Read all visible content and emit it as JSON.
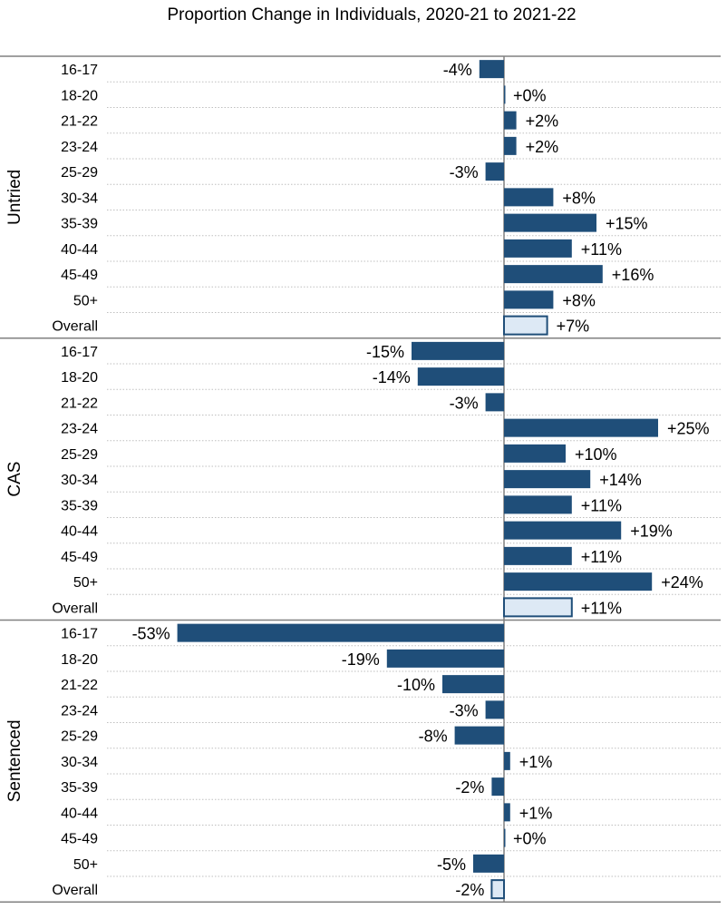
{
  "chart_data": {
    "type": "bar",
    "orientation": "horizontal",
    "title": "Proportion Change in Individuals, 2020-21 to 2021-22",
    "xlim": [
      -55,
      28
    ],
    "colors": {
      "bar": "#1f4e79",
      "overall_fill": "#dde9f5",
      "overall_stroke": "#1f4e79",
      "axis": "#808080",
      "gridline": "#bfbfbf"
    },
    "groups": [
      {
        "name": "Untried",
        "categories": [
          "16-17",
          "18-20",
          "21-22",
          "23-24",
          "25-29",
          "30-34",
          "35-39",
          "40-44",
          "45-49",
          "50+",
          "Overall"
        ],
        "values": [
          -4,
          0,
          2,
          2,
          -3,
          8,
          15,
          11,
          16,
          8,
          7
        ],
        "labels": [
          "-4%",
          "+0%",
          "+2%",
          "+2%",
          "-3%",
          "+8%",
          "+15%",
          "+11%",
          "+16%",
          "+8%",
          "+7%"
        ]
      },
      {
        "name": "CAS",
        "categories": [
          "16-17",
          "18-20",
          "21-22",
          "23-24",
          "25-29",
          "30-34",
          "35-39",
          "40-44",
          "45-49",
          "50+",
          "Overall"
        ],
        "values": [
          -15,
          -14,
          -3,
          25,
          10,
          14,
          11,
          19,
          11,
          24,
          11
        ],
        "labels": [
          "-15%",
          "-14%",
          "-3%",
          "+25%",
          "+10%",
          "+14%",
          "+11%",
          "+19%",
          "+11%",
          "+24%",
          "+11%"
        ]
      },
      {
        "name": "Sentenced",
        "categories": [
          "16-17",
          "18-20",
          "21-22",
          "23-24",
          "25-29",
          "30-34",
          "35-39",
          "40-44",
          "45-49",
          "50+",
          "Overall"
        ],
        "values": [
          -53,
          -19,
          -10,
          -3,
          -8,
          1,
          -2,
          1,
          0,
          -5,
          -2
        ],
        "labels": [
          "-53%",
          "-19%",
          "-10%",
          "-3%",
          "-8%",
          "+1%",
          "-2%",
          "+1%",
          "+0%",
          "-5%",
          "-2%"
        ]
      }
    ]
  }
}
